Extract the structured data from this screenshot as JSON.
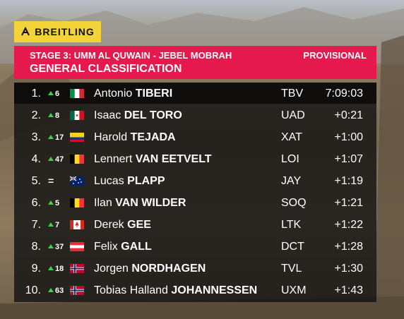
{
  "sponsor": "BREITLING",
  "header": {
    "stage": "STAGE 3: UMM AL QUWAIN - JEBEL MOBRAH",
    "status": "PROVISIONAL",
    "classification": "GENERAL CLASSIFICATION"
  },
  "table": {
    "rows": [
      {
        "position": "1.",
        "change": "6",
        "first_name": "Antonio",
        "last_name": "TIBERI",
        "team": "TBV",
        "time": "7:09:03"
      },
      {
        "position": "2.",
        "change": "8",
        "first_name": "Isaac",
        "last_name": "DEL TORO",
        "team": "UAD",
        "time": "+0:21"
      },
      {
        "position": "3.",
        "change": "17",
        "first_name": "Harold",
        "last_name": "TEJADA",
        "team": "XAT",
        "time": "+1:00"
      },
      {
        "position": "4.",
        "change": "47",
        "first_name": "Lennert",
        "last_name": "VAN EETVELT",
        "team": "LOI",
        "time": "+1:07"
      },
      {
        "position": "5.",
        "change": "=",
        "first_name": "Lucas",
        "last_name": "PLAPP",
        "team": "JAY",
        "time": "+1:19"
      },
      {
        "position": "6.",
        "change": "5",
        "first_name": "Ilan",
        "last_name": "VAN WILDER",
        "team": "SOQ",
        "time": "+1:21"
      },
      {
        "position": "7.",
        "change": "7",
        "first_name": "Derek",
        "last_name": "GEE",
        "team": "LTK",
        "time": "+1:22"
      },
      {
        "position": "8.",
        "change": "37",
        "first_name": "Felix",
        "last_name": "GALL",
        "team": "DCT",
        "time": "+1:28"
      },
      {
        "position": "9.",
        "change": "18",
        "first_name": "Jorgen",
        "last_name": "NORDHAGEN",
        "team": "TVL",
        "time": "+1:30"
      },
      {
        "position": "10.",
        "change": "63",
        "first_name": "Tobias Halland",
        "last_name": "JOHANNESSEN",
        "team": "UXM",
        "time": "+1:43"
      }
    ]
  }
}
